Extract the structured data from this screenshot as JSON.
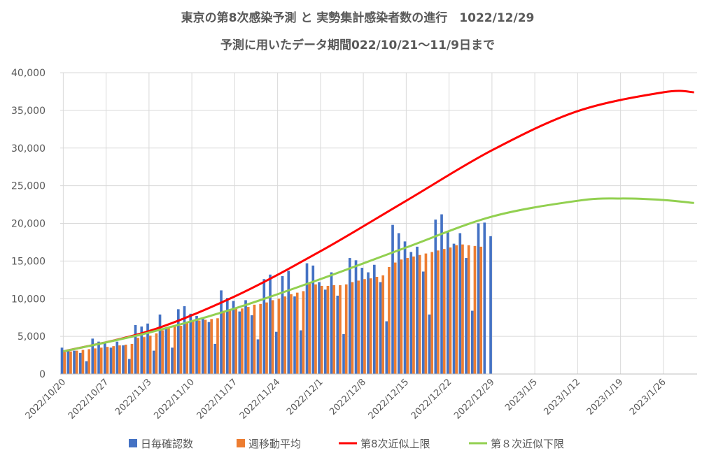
{
  "chart_data": {
    "type": "bar",
    "title": "東京の第8次感染予測 と 実勢集計感染者数の進行　1022/12/29",
    "subtitle": "予測に用いたデータ期間022/10/21～11/9日まで",
    "xlabel": "",
    "ylabel": "",
    "ylim": [
      0,
      40000
    ],
    "yticks": [
      "0",
      "5,000",
      "10,000",
      "15,000",
      "20,000",
      "25,000",
      "30,000",
      "35,000",
      "40,000"
    ],
    "x_range": [
      "2022/10/20",
      "2023/1/31"
    ],
    "x_tick_labels": [
      "2022/10/20",
      "2022/10/27",
      "2022/11/3",
      "2022/11/10",
      "2022/11/17",
      "2022/11/24",
      "2022/12/1",
      "2022/12/8",
      "2022/12/15",
      "2022/12/22",
      "2022/12/29",
      "2023/1/5",
      "2023/1/12",
      "2023/1/19",
      "2023/1/26"
    ],
    "grid": true,
    "legend_position": "bottom",
    "series": [
      {
        "name": "日毎確認数",
        "kind": "bar",
        "color": "#4472C4",
        "start": "2022/10/20",
        "values": [
          3500,
          3200,
          3100,
          2800,
          1700,
          4700,
          4300,
          4100,
          3500,
          4300,
          3800,
          2000,
          6500,
          6300,
          6700,
          3100,
          7900,
          6000,
          3500,
          8600,
          9000,
          8000,
          7700,
          7400,
          6900,
          4000,
          11100,
          10100,
          9700,
          8300,
          9800,
          7800,
          4600,
          12600,
          13200,
          5600,
          13000,
          13700,
          10300,
          5800,
          14700,
          14400,
          12200,
          11200,
          13500,
          10400,
          5300,
          15400,
          15100,
          14100,
          13500,
          14500,
          12200,
          7000,
          19800,
          18700,
          17600,
          16200,
          16900,
          13600,
          7900,
          20500,
          21200,
          18900,
          17300,
          18700,
          15400,
          8400,
          20000,
          20100,
          18300
        ]
      },
      {
        "name": "週移動平均",
        "kind": "bar",
        "color": "#ED7D31",
        "start": "2022/10/20",
        "values": [
          2900,
          3000,
          3100,
          3200,
          3300,
          3400,
          3500,
          3600,
          3700,
          3800,
          3900,
          4000,
          4800,
          4900,
          5100,
          5400,
          5800,
          6100,
          6300,
          6400,
          6800,
          7000,
          7100,
          7200,
          7300,
          7400,
          8400,
          8600,
          8700,
          8700,
          8900,
          9200,
          9300,
          9500,
          9800,
          10000,
          10300,
          10600,
          10800,
          11000,
          12000,
          11900,
          11700,
          11700,
          11800,
          11800,
          11900,
          12200,
          12400,
          12600,
          12700,
          12900,
          13100,
          14200,
          14800,
          15200,
          15400,
          15600,
          15800,
          16000,
          16200,
          16400,
          16600,
          16800,
          17100,
          17200,
          17100,
          17000,
          16900
        ]
      },
      {
        "name": "第8次近似上限",
        "kind": "line",
        "color": "#FF0000",
        "x": [
          "2022/10/20",
          "2022/11/3",
          "2022/11/17",
          "2022/12/1",
          "2022/12/15",
          "2022/12/29",
          "2023/1/12",
          "2023/1/26",
          "2023/1/31"
        ],
        "values": [
          3000,
          5700,
          10300,
          16300,
          23000,
          29700,
          34900,
          37400,
          37400
        ]
      },
      {
        "name": "第８次近似下限",
        "kind": "line",
        "color": "#92D050",
        "x": [
          "2022/10/20",
          "2022/11/3",
          "2022/11/17",
          "2022/12/1",
          "2022/12/15",
          "2022/12/29",
          "2023/1/12",
          "2023/1/19",
          "2023/1/26",
          "2023/1/31"
        ],
        "values": [
          3000,
          5500,
          8700,
          12600,
          16800,
          20900,
          23000,
          23300,
          23100,
          22700
        ]
      }
    ]
  }
}
